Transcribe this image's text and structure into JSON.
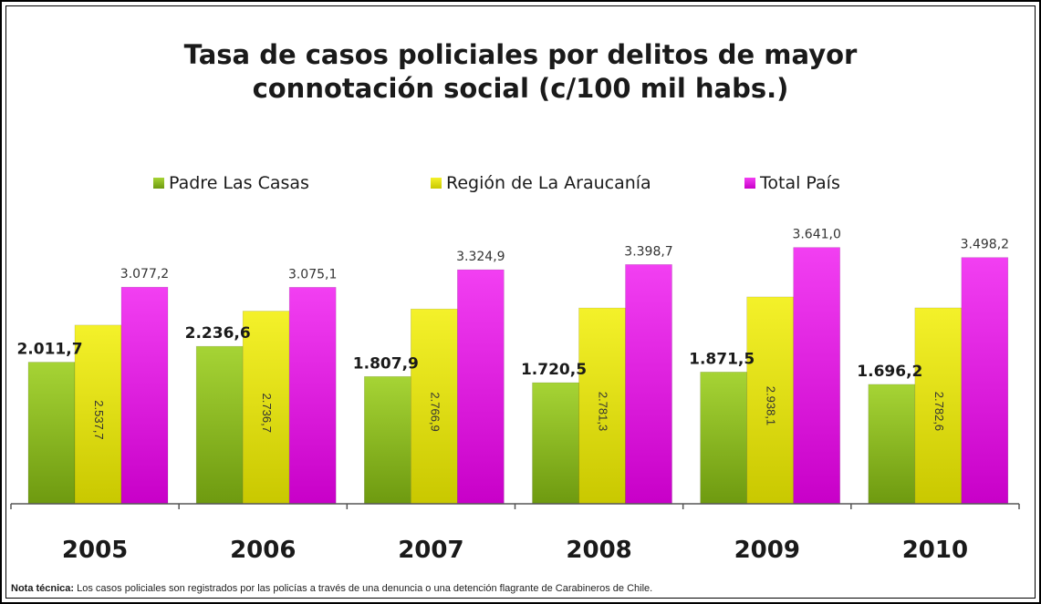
{
  "chart_data": {
    "type": "bar",
    "title_lines": [
      "Tasa de casos policiales por delitos de mayor",
      "connotación social (c/100 mil habs.)"
    ],
    "categories": [
      "2005",
      "2006",
      "2007",
      "2008",
      "2009",
      "2010"
    ],
    "series": [
      {
        "name": "Padre Las Casas",
        "values": [
          2011.7,
          2236.6,
          1807.9,
          1720.5,
          1871.5,
          1696.2
        ],
        "labels": [
          "2.011,7",
          "2.236,6",
          "1.807,9",
          "1.720,5",
          "1.871,5",
          "1.696,2"
        ],
        "color": "#6e9a10",
        "color_top": "#a6d435"
      },
      {
        "name": "Región de La Araucanía",
        "values": [
          2537.7,
          2736.7,
          2766.9,
          2781.3,
          2938.1,
          2782.6
        ],
        "labels": [
          "2.537,7",
          "2.736,7",
          "2.766,9",
          "2.781,3",
          "2.938,1",
          "2.782,6"
        ],
        "color": "#c9c800",
        "color_top": "#f4f12a"
      },
      {
        "name": "Total País",
        "values": [
          3077.2,
          3075.1,
          3324.9,
          3398.7,
          3641.0,
          3498.2
        ],
        "labels": [
          "3.077,2",
          "3.075,1",
          "3.324,9",
          "3.398,7",
          "3.641,0",
          "3.498,2"
        ],
        "color": "#c800c8",
        "color_top": "#f23ff2"
      }
    ],
    "legend_position": "top",
    "ylim": [
      0,
      4050
    ]
  },
  "note": {
    "label": "Nota técnica:",
    "text": " Los casos policiales son registrados por las policías a través de una denuncia o una detención flagrante de Carabineros de Chile."
  }
}
